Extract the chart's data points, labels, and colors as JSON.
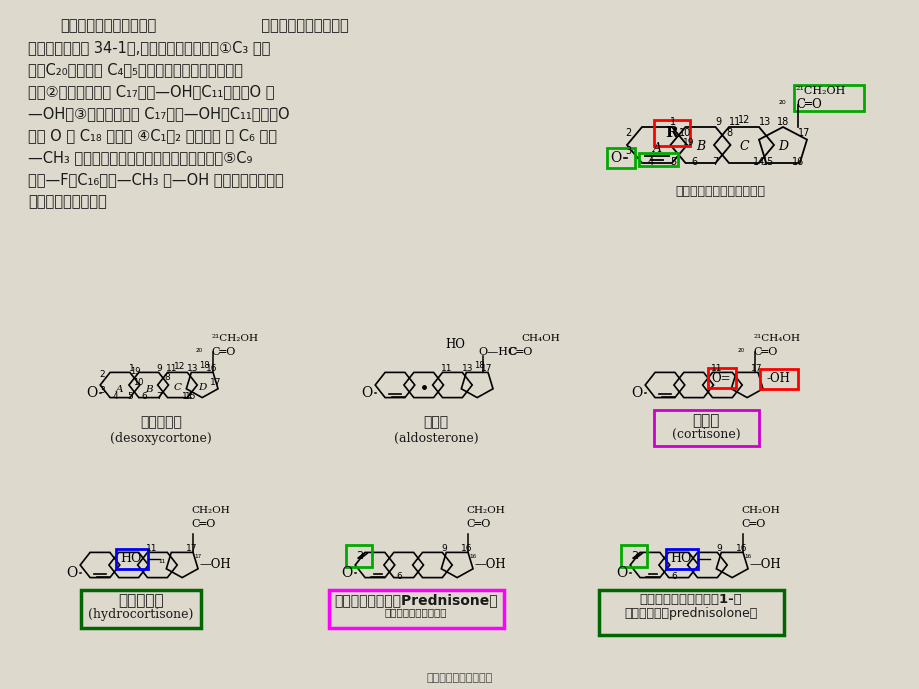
{
  "bg_color": "#ddd9cc",
  "text_color": "#1a1a1a",
  "line1a": "【化学结构及构效关系】",
  "line1b": "  腾上腺皮质激素的基本",
  "line2": "结构为甚核（图 34-1）,构效关系非常密切：①C₃ 的酮",
  "line3": "基、C₂₀的炭基及 C₄～₅的双键是保持生理功能所必",
  "line4": "需；②糖皮质激素的 C₁₇上有—OH；C₁₁上有＝O 或",
  "line5": "—OH；③盐皮质激素的 C₁₇上无—OH；C₁₁上无＝O",
  "line6": "或有 O 与 C₁₈ 相联； ④C₁～₂ 为双键以 及 C₆ 引入",
  "line7": "—CH₃ 则抗炎作用增强、水盐代谢作用减弱；⑤C₉",
  "line8": "引入—F，C₁₆引入—CH₃ 或—OH 则抗炎作用更强、",
  "line9": "水盐代谢作用更弱。",
  "tr_caption": "腾上腺皮质激素的基本结构",
  "mol1_name": "去氧皮质酸",
  "mol1_eng": "(desoxycortone)",
  "mol2_name": "醆固酸",
  "mol2_eng": "(aldosterone)",
  "mol3_name": "可的松",
  "mol3_eng": "(cortisone)",
  "mol4_name": "氢化可的松",
  "mol4_eng": "(hydrocortisone)",
  "mol5_name": "发尼松（强的松，Prednisone）",
  "mol6_line1": "泼尼松龙（强的松龙，1-希",
  "mol6_line2": "氢化可的松，prednisolone）",
  "footer": "第三页，共三十八页。"
}
